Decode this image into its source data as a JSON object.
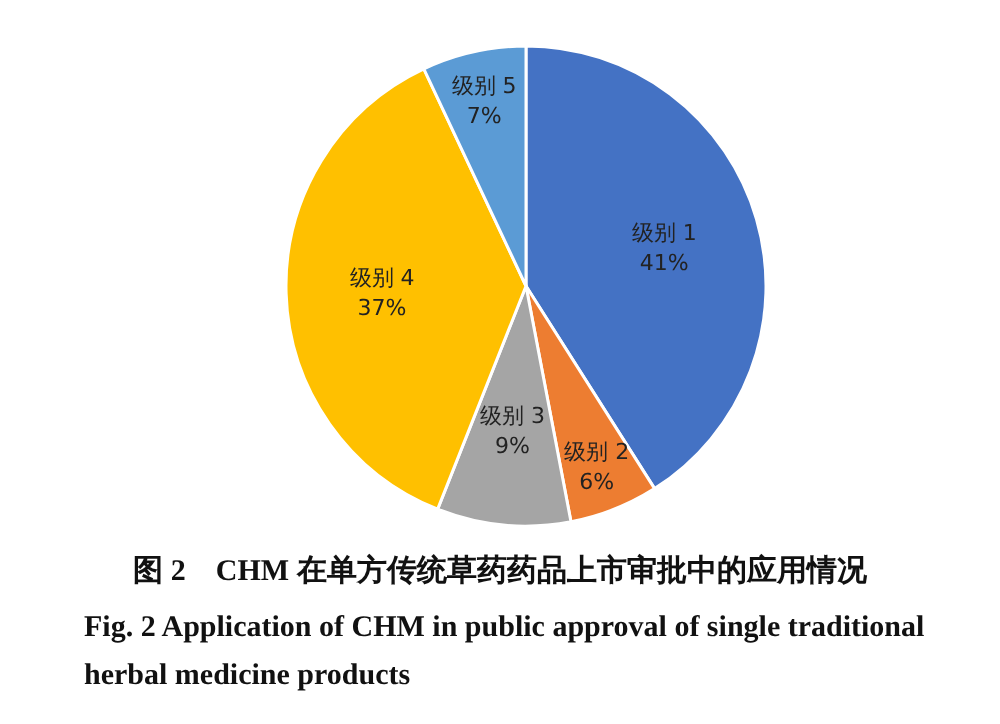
{
  "chart_data": {
    "type": "pie",
    "title": "图 2　CHM 在单方传统草药药品上市审批中的应用情况",
    "subtitle": "Fig. 2  Application of CHM in public approval of single traditional herbal medicine products",
    "categories": [
      "级别 1",
      "级别 2",
      "级别 3",
      "级别 4",
      "级别 5"
    ],
    "values": [
      41,
      6,
      9,
      37,
      7
    ],
    "colors": [
      "#4472c4",
      "#ed7d31",
      "#a5a5a5",
      "#ffc000",
      "#5b9bd5"
    ],
    "value_labels": [
      "41%",
      "6%",
      "9%",
      "37%",
      "7%"
    ]
  }
}
